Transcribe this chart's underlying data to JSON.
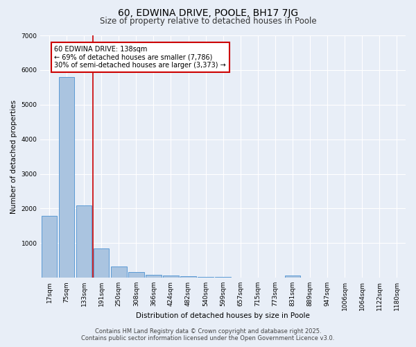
{
  "title": "60, EDWINA DRIVE, POOLE, BH17 7JG",
  "subtitle": "Size of property relative to detached houses in Poole",
  "xlabel": "Distribution of detached houses by size in Poole",
  "ylabel": "Number of detached properties",
  "bar_labels": [
    "17sqm",
    "75sqm",
    "133sqm",
    "191sqm",
    "250sqm",
    "308sqm",
    "366sqm",
    "424sqm",
    "482sqm",
    "540sqm",
    "599sqm",
    "657sqm",
    "715sqm",
    "773sqm",
    "831sqm",
    "889sqm",
    "947sqm",
    "1006sqm",
    "1064sqm",
    "1122sqm",
    "1180sqm"
  ],
  "bar_values": [
    1780,
    5800,
    2080,
    840,
    330,
    175,
    90,
    65,
    40,
    25,
    15,
    10,
    8,
    5,
    60,
    5,
    3,
    2,
    1,
    1,
    1
  ],
  "bar_color": "#aac4e0",
  "bar_edge_color": "#5b9bd5",
  "red_line_index": 2,
  "annotation_text": "60 EDWINA DRIVE: 138sqm\n← 69% of detached houses are smaller (7,786)\n30% of semi-detached houses are larger (3,373) →",
  "annotation_box_color": "#ffffff",
  "annotation_box_edge_color": "#cc0000",
  "ylim": [
    0,
    7000
  ],
  "yticks": [
    0,
    1000,
    2000,
    3000,
    4000,
    5000,
    6000,
    7000
  ],
  "bg_color": "#e8eef7",
  "grid_color": "#ffffff",
  "footer_line1": "Contains HM Land Registry data © Crown copyright and database right 2025.",
  "footer_line2": "Contains public sector information licensed under the Open Government Licence v3.0.",
  "title_fontsize": 10,
  "subtitle_fontsize": 8.5,
  "axis_label_fontsize": 7.5,
  "tick_fontsize": 6.5,
  "annotation_fontsize": 7,
  "footer_fontsize": 6
}
